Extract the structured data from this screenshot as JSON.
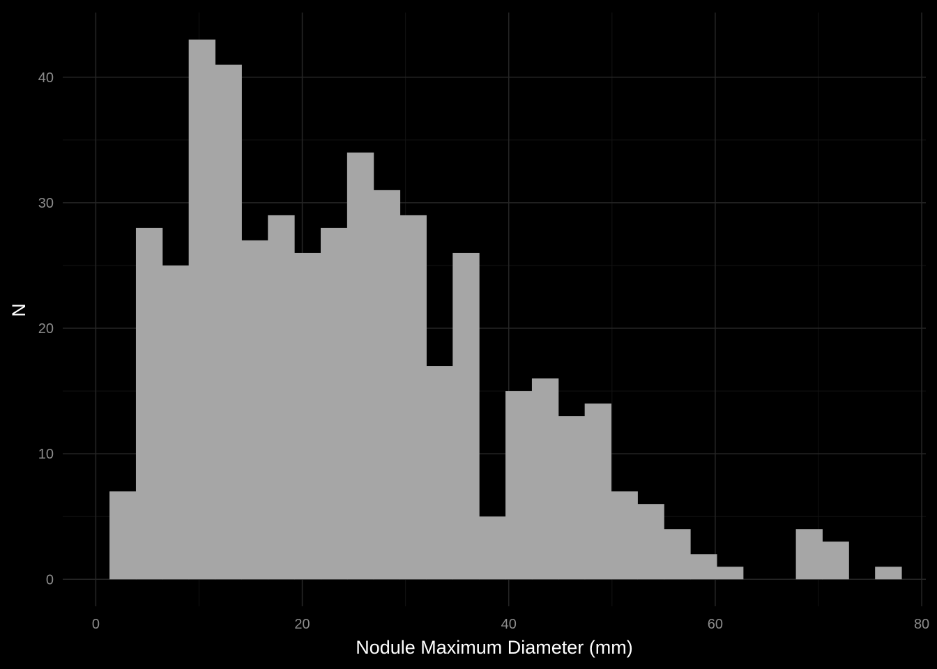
{
  "chart_data": {
    "type": "bar",
    "title": "",
    "xlabel": "Nodule Maximum Diameter (mm)",
    "ylabel": "N",
    "xlim": [
      -3.2,
      80.4
    ],
    "ylim": [
      -2.15,
      45.15
    ],
    "x_ticks": [
      0,
      20,
      40,
      60,
      80
    ],
    "x_minor_ticks": [
      10,
      30,
      50,
      70
    ],
    "y_ticks": [
      0,
      10,
      20,
      30,
      40
    ],
    "y_minor_ticks": [
      5,
      15,
      25,
      35
    ],
    "grid": true,
    "legend": "none",
    "bin_width": 2.557,
    "bin_start": 1.33,
    "values": [
      7,
      28,
      25,
      43,
      41,
      27,
      29,
      26,
      28,
      34,
      31,
      29,
      17,
      26,
      5,
      15,
      16,
      13,
      14,
      7,
      6,
      4,
      2,
      1,
      0,
      0,
      4,
      3,
      0,
      1
    ],
    "colors": {
      "background": "#000000",
      "bar_fill": "#a6a6a6",
      "grid_major": "#262626",
      "grid_minor": "#131313",
      "tick_text": "#8c8c8c",
      "axis_title": "#ffffff"
    }
  }
}
